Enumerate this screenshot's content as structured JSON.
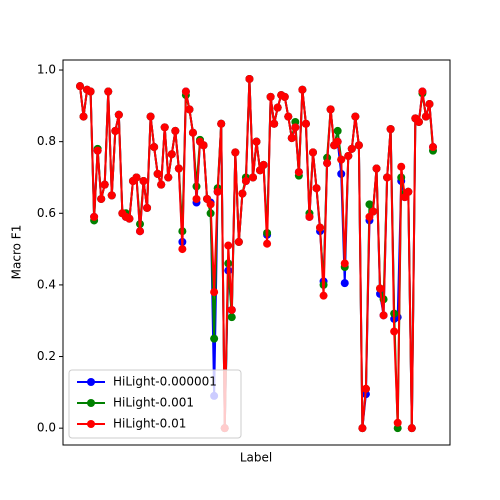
{
  "chart_data": {
    "type": "line",
    "xlabel": "Label",
    "ylabel": "Macro F1",
    "categories": [
      null,
      null,
      null,
      null,
      null,
      null,
      null,
      null,
      null,
      null,
      null,
      null,
      null,
      null,
      null,
      null,
      null,
      null,
      null,
      null,
      null,
      null,
      null,
      null,
      null,
      null,
      null,
      null,
      null,
      null,
      null,
      null,
      null,
      null,
      null,
      null,
      null,
      null,
      null,
      null,
      null,
      null,
      null,
      null,
      null,
      null,
      null,
      null,
      null,
      null,
      null,
      null,
      null,
      null,
      null,
      null,
      null,
      null,
      null,
      null,
      null,
      null,
      null,
      null,
      null,
      null,
      null,
      null,
      null,
      null,
      null,
      null,
      null,
      null,
      null,
      null,
      null,
      null,
      null,
      null,
      null,
      null,
      null,
      null,
      null,
      null,
      null,
      null,
      null,
      null,
      null,
      null,
      null,
      null,
      null,
      null,
      null,
      null,
      null,
      null,
      null
    ],
    "ylim": [
      -0.047,
      1.028
    ],
    "yticks": [
      {
        "value": 0,
        "label": "0.0"
      },
      {
        "value": 0.2,
        "label": "0.2"
      },
      {
        "value": 0.4,
        "label": "0.4"
      },
      {
        "value": 0.6,
        "label": "0.6"
      },
      {
        "value": 0.8,
        "label": "0.8"
      },
      {
        "value": 1,
        "label": "1.0"
      }
    ],
    "grid": false,
    "legend": "lower left",
    "series": [
      {
        "name": "HiLight-0.000001",
        "color": "#0000ff",
        "values": [
          0.955,
          0.87,
          0.945,
          0.94,
          0.59,
          0.775,
          0.64,
          0.68,
          0.94,
          0.65,
          0.83,
          0.875,
          0.6,
          0.59,
          0.585,
          0.69,
          0.7,
          0.55,
          0.69,
          0.615,
          0.87,
          0.785,
          0.71,
          0.68,
          0.84,
          0.7,
          0.765,
          0.83,
          0.725,
          0.52,
          0.94,
          0.89,
          0.825,
          0.63,
          0.8,
          0.79,
          0.64,
          0.63,
          0.09,
          0.66,
          0.85,
          0.0,
          0.44,
          0.33,
          0.77,
          0.52,
          0.655,
          0.69,
          0.975,
          0.7,
          0.8,
          0.72,
          0.735,
          0.54,
          0.925,
          0.85,
          0.895,
          0.93,
          0.925,
          0.87,
          0.81,
          0.84,
          0.715,
          0.945,
          0.85,
          0.59,
          0.77,
          0.67,
          0.55,
          0.41,
          0.74,
          0.89,
          0.79,
          0.8,
          0.71,
          0.405,
          0.76,
          0.78,
          0.87,
          0.79,
          0.0,
          0.095,
          0.58,
          0.605,
          0.725,
          0.375,
          0.315,
          0.7,
          0.835,
          0.305,
          0.31,
          0.69,
          0.645,
          0.66,
          0.0,
          0.865,
          0.855,
          0.94,
          0.87,
          0.905,
          0.785
        ]
      },
      {
        "name": "HiLight-0.001",
        "color": "#008000",
        "values": [
          0.955,
          0.87,
          0.945,
          0.94,
          0.58,
          0.78,
          0.64,
          0.68,
          0.94,
          0.65,
          0.83,
          0.875,
          0.6,
          0.6,
          0.585,
          0.69,
          0.7,
          0.57,
          0.69,
          0.615,
          0.87,
          0.785,
          0.71,
          0.68,
          0.84,
          0.7,
          0.765,
          0.83,
          0.725,
          0.55,
          0.93,
          0.89,
          0.825,
          0.675,
          0.805,
          0.79,
          0.64,
          0.6,
          0.25,
          0.67,
          0.85,
          0.0,
          0.46,
          0.31,
          0.77,
          0.52,
          0.655,
          0.7,
          0.975,
          0.7,
          0.8,
          0.72,
          0.735,
          0.545,
          0.925,
          0.85,
          0.895,
          0.93,
          0.925,
          0.87,
          0.81,
          0.855,
          0.705,
          0.945,
          0.85,
          0.6,
          0.77,
          0.67,
          0.56,
          0.4,
          0.755,
          0.89,
          0.79,
          0.83,
          0.75,
          0.45,
          0.76,
          0.78,
          0.87,
          0.79,
          0.0,
          0.11,
          0.625,
          0.605,
          0.725,
          0.39,
          0.36,
          0.7,
          0.835,
          0.32,
          0.0,
          0.7,
          0.655,
          0.66,
          0.0,
          0.865,
          0.855,
          0.935,
          0.87,
          0.905,
          0.775
        ]
      },
      {
        "name": "HiLight-0.01",
        "color": "#ff0000",
        "values": [
          0.955,
          0.87,
          0.945,
          0.94,
          0.59,
          0.775,
          0.64,
          0.68,
          0.94,
          0.65,
          0.83,
          0.875,
          0.6,
          0.59,
          0.585,
          0.69,
          0.7,
          0.55,
          0.69,
          0.615,
          0.87,
          0.785,
          0.71,
          0.68,
          0.84,
          0.7,
          0.765,
          0.83,
          0.725,
          0.5,
          0.94,
          0.89,
          0.825,
          0.64,
          0.8,
          0.79,
          0.64,
          0.625,
          0.38,
          0.66,
          0.85,
          0.0,
          0.51,
          0.33,
          0.77,
          0.52,
          0.655,
          0.69,
          0.975,
          0.7,
          0.8,
          0.72,
          0.735,
          0.515,
          0.925,
          0.85,
          0.895,
          0.93,
          0.925,
          0.87,
          0.81,
          0.84,
          0.715,
          0.945,
          0.85,
          0.59,
          0.77,
          0.67,
          0.56,
          0.37,
          0.74,
          0.89,
          0.79,
          0.8,
          0.75,
          0.46,
          0.76,
          0.78,
          0.87,
          0.79,
          0.0,
          0.11,
          0.59,
          0.605,
          0.725,
          0.39,
          0.315,
          0.7,
          0.835,
          0.27,
          0.015,
          0.73,
          0.645,
          0.66,
          0.0,
          0.865,
          0.855,
          0.94,
          0.87,
          0.905,
          0.785
        ]
      }
    ]
  }
}
